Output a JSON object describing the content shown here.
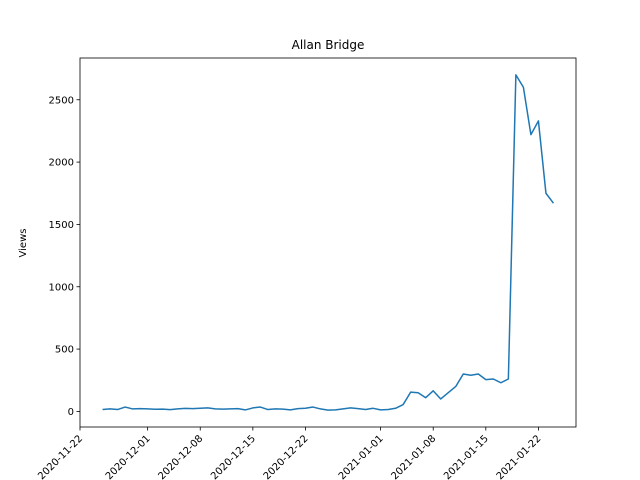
{
  "chart_data": {
    "type": "line",
    "title": "Allan Bridge",
    "y_label": "Views",
    "x": [
      "2020-11-25",
      "2020-11-26",
      "2020-11-27",
      "2020-11-28",
      "2020-11-29",
      "2020-11-30",
      "2020-12-01",
      "2020-12-02",
      "2020-12-03",
      "2020-12-04",
      "2020-12-05",
      "2020-12-06",
      "2020-12-07",
      "2020-12-08",
      "2020-12-09",
      "2020-12-10",
      "2020-12-11",
      "2020-12-12",
      "2020-12-13",
      "2020-12-14",
      "2020-12-15",
      "2020-12-16",
      "2020-12-17",
      "2020-12-18",
      "2020-12-19",
      "2020-12-20",
      "2020-12-21",
      "2020-12-22",
      "2020-12-23",
      "2020-12-24",
      "2020-12-25",
      "2020-12-26",
      "2020-12-27",
      "2020-12-28",
      "2020-12-29",
      "2020-12-30",
      "2020-12-31",
      "2021-01-01",
      "2021-01-02",
      "2021-01-03",
      "2021-01-04",
      "2021-01-05",
      "2021-01-06",
      "2021-01-07",
      "2021-01-08",
      "2021-01-09",
      "2021-01-10",
      "2021-01-11",
      "2021-01-12",
      "2021-01-13",
      "2021-01-14",
      "2021-01-15",
      "2021-01-16",
      "2021-01-17",
      "2021-01-18",
      "2021-01-19",
      "2021-01-20",
      "2021-01-21",
      "2021-01-22",
      "2021-01-23",
      "2021-01-24"
    ],
    "series": [
      {
        "name": "Views",
        "color": "#1f77b4",
        "values": [
          15,
          20,
          15,
          35,
          20,
          22,
          20,
          17,
          18,
          14,
          20,
          24,
          22,
          25,
          28,
          20,
          18,
          20,
          22,
          12,
          28,
          35,
          15,
          20,
          18,
          12,
          22,
          25,
          35,
          20,
          10,
          12,
          20,
          28,
          22,
          15,
          25,
          12,
          15,
          25,
          55,
          155,
          150,
          110,
          165,
          100,
          150,
          200,
          300,
          290,
          300,
          255,
          260,
          230,
          260,
          2700,
          2600,
          2220,
          2330,
          1750,
          1670
        ]
      }
    ],
    "xlim": [
      "2020-11-22",
      "2021-01-27"
    ],
    "xticks": [
      "2020-11-22",
      "2020-12-01",
      "2020-12-08",
      "2020-12-15",
      "2020-12-22",
      "2021-01-01",
      "2021-01-08",
      "2021-01-15",
      "2021-01-22"
    ],
    "ylim": [
      -125,
      2835
    ],
    "yticks": [
      0,
      500,
      1000,
      1500,
      2000,
      2500
    ]
  }
}
